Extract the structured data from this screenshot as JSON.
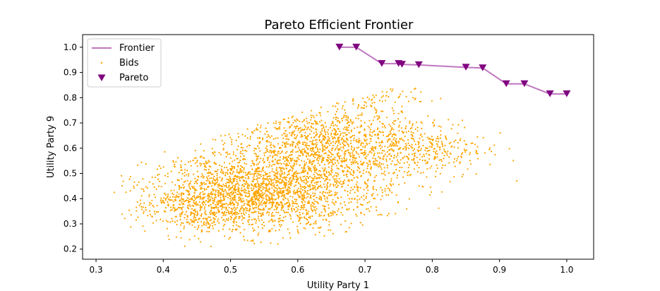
{
  "chart_data": {
    "type": "scatter",
    "title": "Pareto Efficient Frontier",
    "xlabel": "Utility Party 1",
    "ylabel": "Utility Party 9",
    "xlim": [
      0.28,
      1.04
    ],
    "ylim": [
      0.16,
      1.05
    ],
    "xticks": [
      "0.3",
      "0.4",
      "0.5",
      "0.6",
      "0.7",
      "0.8",
      "0.9",
      "1.0"
    ],
    "yticks": [
      "0.2",
      "0.3",
      "0.4",
      "0.5",
      "0.6",
      "0.7",
      "0.8",
      "0.9",
      "1.0"
    ],
    "grid": false,
    "legend_position": "top-left",
    "legend": [
      {
        "label": "Frontier",
        "kind": "line",
        "color": "#bf77bf"
      },
      {
        "label": "Bids",
        "kind": "dot",
        "color": "#ffa500"
      },
      {
        "label": "Pareto",
        "kind": "triangle",
        "color": "#800080"
      }
    ],
    "frontier": {
      "name": "Frontier",
      "color": "#bf77bf",
      "x": [
        0.662,
        0.687,
        0.725,
        0.75,
        0.755,
        0.78,
        0.85,
        0.875,
        0.91,
        0.937,
        0.975,
        1.0
      ],
      "y": [
        1.0,
        1.0,
        0.935,
        0.935,
        0.932,
        0.93,
        0.92,
        0.918,
        0.855,
        0.855,
        0.815,
        0.815
      ]
    },
    "pareto": {
      "name": "Pareto",
      "color": "#800080",
      "x": [
        0.662,
        0.687,
        0.725,
        0.75,
        0.755,
        0.78,
        0.85,
        0.875,
        0.91,
        0.937,
        0.975,
        1.0
      ],
      "y": [
        1.0,
        1.0,
        0.935,
        0.935,
        0.932,
        0.93,
        0.92,
        0.918,
        0.855,
        0.855,
        0.815,
        0.815
      ]
    },
    "bids": {
      "name": "Bids",
      "color": "#ffa500",
      "clusters": [
        {
          "cx": 0.53,
          "cy": 0.42,
          "sx": 0.075,
          "sy": 0.075,
          "n": 1600
        },
        {
          "cx": 0.63,
          "cy": 0.62,
          "sx": 0.065,
          "sy": 0.075,
          "n": 1000
        },
        {
          "cx": 0.6,
          "cy": 0.45,
          "sx": 0.075,
          "sy": 0.085,
          "n": 700
        },
        {
          "cx": 0.77,
          "cy": 0.6,
          "sx": 0.055,
          "sy": 0.06,
          "n": 450
        },
        {
          "cx": 0.7,
          "cy": 0.82,
          "sx": 0.04,
          "sy": 0.055,
          "n": 150
        },
        {
          "cx": 0.44,
          "cy": 0.36,
          "sx": 0.04,
          "sy": 0.05,
          "n": 250
        }
      ],
      "x_range": [
        0.31,
        0.98
      ],
      "y_range": [
        0.2,
        0.97
      ]
    }
  }
}
